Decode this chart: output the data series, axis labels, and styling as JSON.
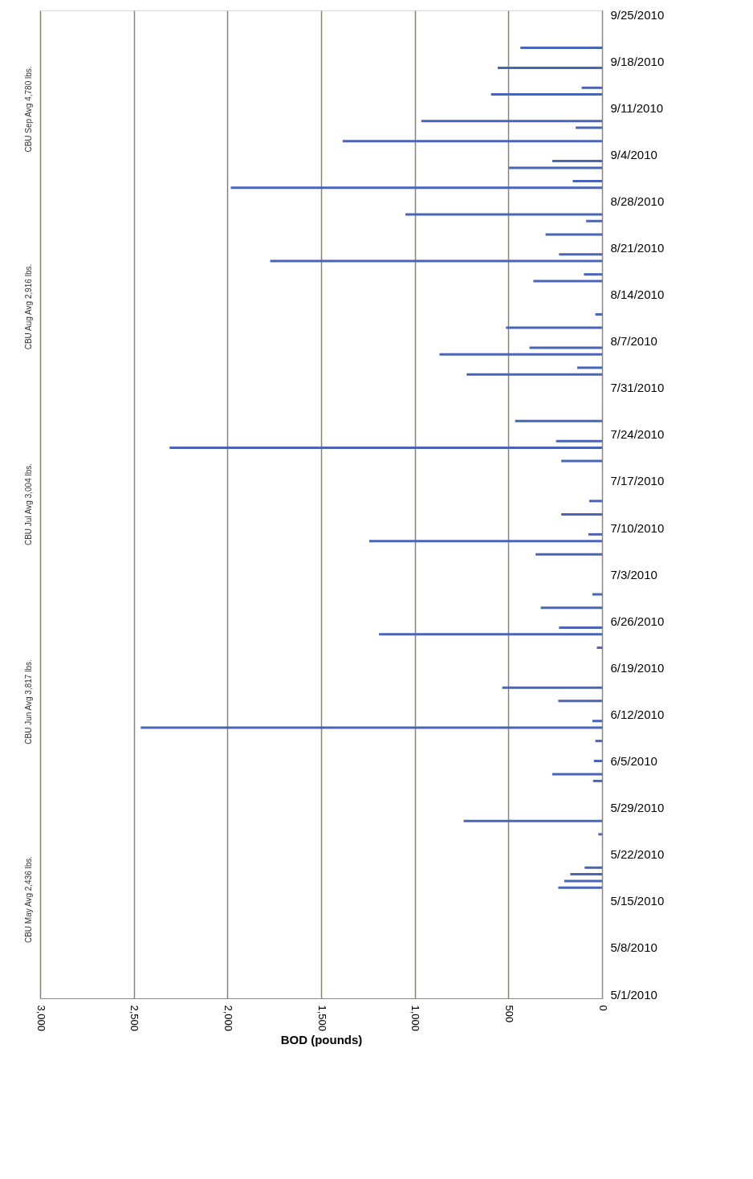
{
  "chart_data": {
    "type": "bar",
    "orientation": "horizontal",
    "xlabel": "BOD (pounds)",
    "x": [
      "2010-05-17",
      "2010-05-18",
      "2010-05-19",
      "2010-05-20",
      "2010-05-25",
      "2010-05-27",
      "2010-06-02",
      "2010-06-03",
      "2010-06-05",
      "2010-06-08",
      "2010-06-10",
      "2010-06-11",
      "2010-06-14",
      "2010-06-16",
      "2010-06-22",
      "2010-06-24",
      "2010-06-25",
      "2010-06-28",
      "2010-06-30",
      "2010-07-06",
      "2010-07-08",
      "2010-07-09",
      "2010-07-12",
      "2010-07-14",
      "2010-07-20",
      "2010-07-22",
      "2010-07-23",
      "2010-07-26",
      "2010-08-02",
      "2010-08-03",
      "2010-08-05",
      "2010-08-06",
      "2010-08-09",
      "2010-08-11",
      "2010-08-16",
      "2010-08-17",
      "2010-08-19",
      "2010-08-20",
      "2010-08-23",
      "2010-08-25",
      "2010-08-26",
      "2010-08-30",
      "2010-08-31",
      "2010-09-02",
      "2010-09-03",
      "2010-09-06",
      "2010-09-08",
      "2010-09-09",
      "2010-09-13",
      "2010-09-14",
      "2010-09-17",
      "2010-09-20"
    ],
    "values": [
      234,
      202,
      170,
      93,
      20,
      739,
      48,
      266,
      44,
      36,
      2463,
      52,
      234,
      533,
      28,
      1191,
      230,
      327,
      52,
      355,
      1243,
      73,
      218,
      69,
      218,
      2309,
      246,
      464,
      723,
      133,
      868,
      388,
      513,
      36,
      367,
      97,
      1772,
      230,
      302,
      85,
      1050,
      1982,
      157,
      497,
      266,
      1385,
      141,
      965,
      593,
      109,
      557,
      436
    ],
    "color": "#4a64b8",
    "xlim": [
      3000,
      0
    ],
    "xticks": [
      {
        "value": 3000,
        "label": "3,000"
      },
      {
        "value": 2500,
        "label": "2,500"
      },
      {
        "value": 2000,
        "label": "2,000"
      },
      {
        "value": 1500,
        "label": "1,500"
      },
      {
        "value": 1000,
        "label": "1,000"
      },
      500,
      0
    ],
    "ylim": [
      "2010-05-01",
      "2010-09-25"
    ],
    "yticks": [
      {
        "value": "2010-05-01",
        "label": "5/1/2010"
      },
      {
        "value": "2010-05-08",
        "label": "5/8/2010"
      },
      {
        "value": "2010-05-15",
        "label": "5/15/2010"
      },
      {
        "value": "2010-05-22",
        "label": "5/22/2010"
      },
      {
        "value": "2010-05-29",
        "label": "5/29/2010"
      },
      {
        "value": "2010-06-05",
        "label": "6/5/2010"
      },
      {
        "value": "2010-06-12",
        "label": "6/12/2010"
      },
      {
        "value": "2010-06-19",
        "label": "6/19/2010"
      },
      {
        "value": "2010-06-26",
        "label": "6/26/2010"
      },
      {
        "value": "2010-07-03",
        "label": "7/3/2010"
      },
      {
        "value": "2010-07-10",
        "label": "7/10/2010"
      },
      {
        "value": "2010-07-17",
        "label": "7/17/2010"
      },
      {
        "value": "2010-07-24",
        "label": "7/24/2010"
      },
      {
        "value": "2010-07-31",
        "label": "7/31/2010"
      },
      {
        "value": "2010-08-07",
        "label": "8/7/2010"
      },
      {
        "value": "2010-08-14",
        "label": "8/14/2010"
      },
      {
        "value": "2010-08-21",
        "label": "8/21/2010"
      },
      {
        "value": "2010-08-28",
        "label": "8/28/2010"
      },
      {
        "value": "2010-09-04",
        "label": "9/4/2010"
      },
      {
        "value": "2010-09-11",
        "label": "9/11/2010"
      },
      {
        "value": "2010-09-18",
        "label": "9/18/2010"
      },
      {
        "value": "2010-09-25",
        "label": "9/25/2010"
      }
    ],
    "grid": "x",
    "annotations": [
      "CBU May Avg 2,436 lbs.",
      "CBU Jun Avg 3,817 lbs.",
      "CBU Jul Avg 3,004 lbs.",
      "CBU Aug Avg 2,916 lbs.",
      "CBU Sep Avg 4,780 lbs."
    ]
  }
}
